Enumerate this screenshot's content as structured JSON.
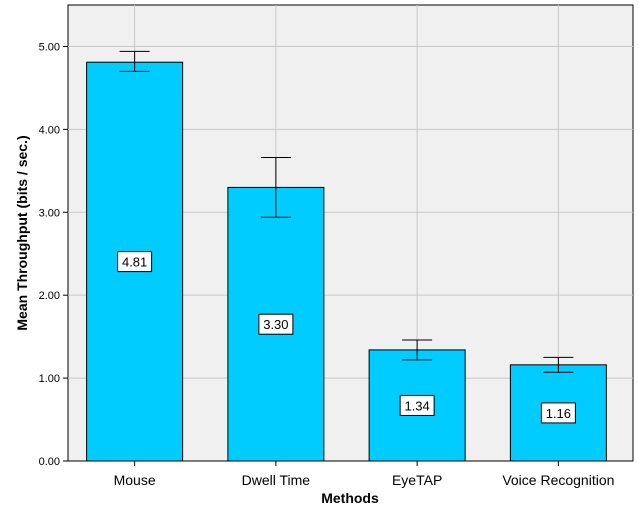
{
  "chart_data": {
    "type": "bar",
    "categories": [
      "Mouse",
      "Dwell Time",
      "EyeTAP",
      "Voice Recognition"
    ],
    "values": [
      4.81,
      3.3,
      1.34,
      1.16
    ],
    "error_low": [
      4.7,
      2.94,
      1.22,
      1.07
    ],
    "error_high": [
      4.94,
      3.66,
      1.46,
      1.25
    ],
    "data_labels": [
      "4.81",
      "3.30",
      "1.34",
      "1.16"
    ],
    "y_ticks": [
      0,
      1,
      2,
      3,
      4,
      5
    ],
    "y_tick_labels": [
      "0.00",
      "1.00",
      "2.00",
      "3.00",
      "4.00",
      "5.00"
    ],
    "title": "",
    "xlabel": "Methods",
    "ylabel": "Mean Throughput (bits / sec.)",
    "ylim": [
      0,
      5.5
    ],
    "grid": true,
    "legend": "none",
    "colors": {
      "bar": "#00ccff",
      "plot_bg": "#f0f0f0",
      "grid": "#c8c8c8",
      "stroke": "#000000"
    }
  }
}
